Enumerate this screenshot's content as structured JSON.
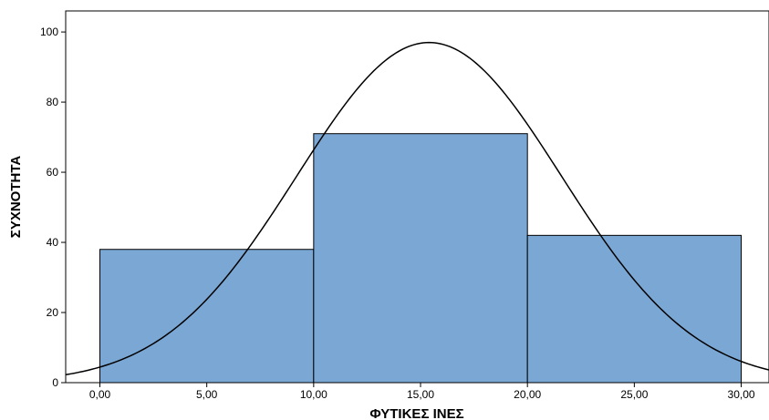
{
  "chart_data": {
    "type": "bar",
    "subtype": "histogram",
    "title": "",
    "xlabel": "ΦΥΤΙΚΕΣ ΙΝΕΣ",
    "ylabel": "ΣΥΧΝΟΤΗΤΑ",
    "bins": [
      {
        "start": 0,
        "end": 10,
        "value": 38
      },
      {
        "start": 10,
        "end": 20,
        "value": 71
      },
      {
        "start": 20,
        "end": 30,
        "value": 42
      }
    ],
    "xlim": [
      -1.6,
      31.3
    ],
    "ylim": [
      0,
      106
    ],
    "xticks": [
      0,
      5,
      10,
      15,
      20,
      25,
      30
    ],
    "xtick_labels": [
      "0,00",
      "5,00",
      "10,00",
      "15,00",
      "20,00",
      "25,00",
      "30,00"
    ],
    "yticks": [
      0,
      20,
      40,
      60,
      80,
      100
    ],
    "ytick_labels": [
      "0",
      "20",
      "40",
      "60",
      "80",
      "100"
    ],
    "normal_curve": {
      "mean": 15.4,
      "sd": 6.2,
      "peak": 97
    },
    "grid": false,
    "legend": "none",
    "colors": {
      "bar_fill": "#7ba7d4",
      "bar_stroke": "#000000",
      "curve": "#000000",
      "frame": "#000000"
    }
  }
}
